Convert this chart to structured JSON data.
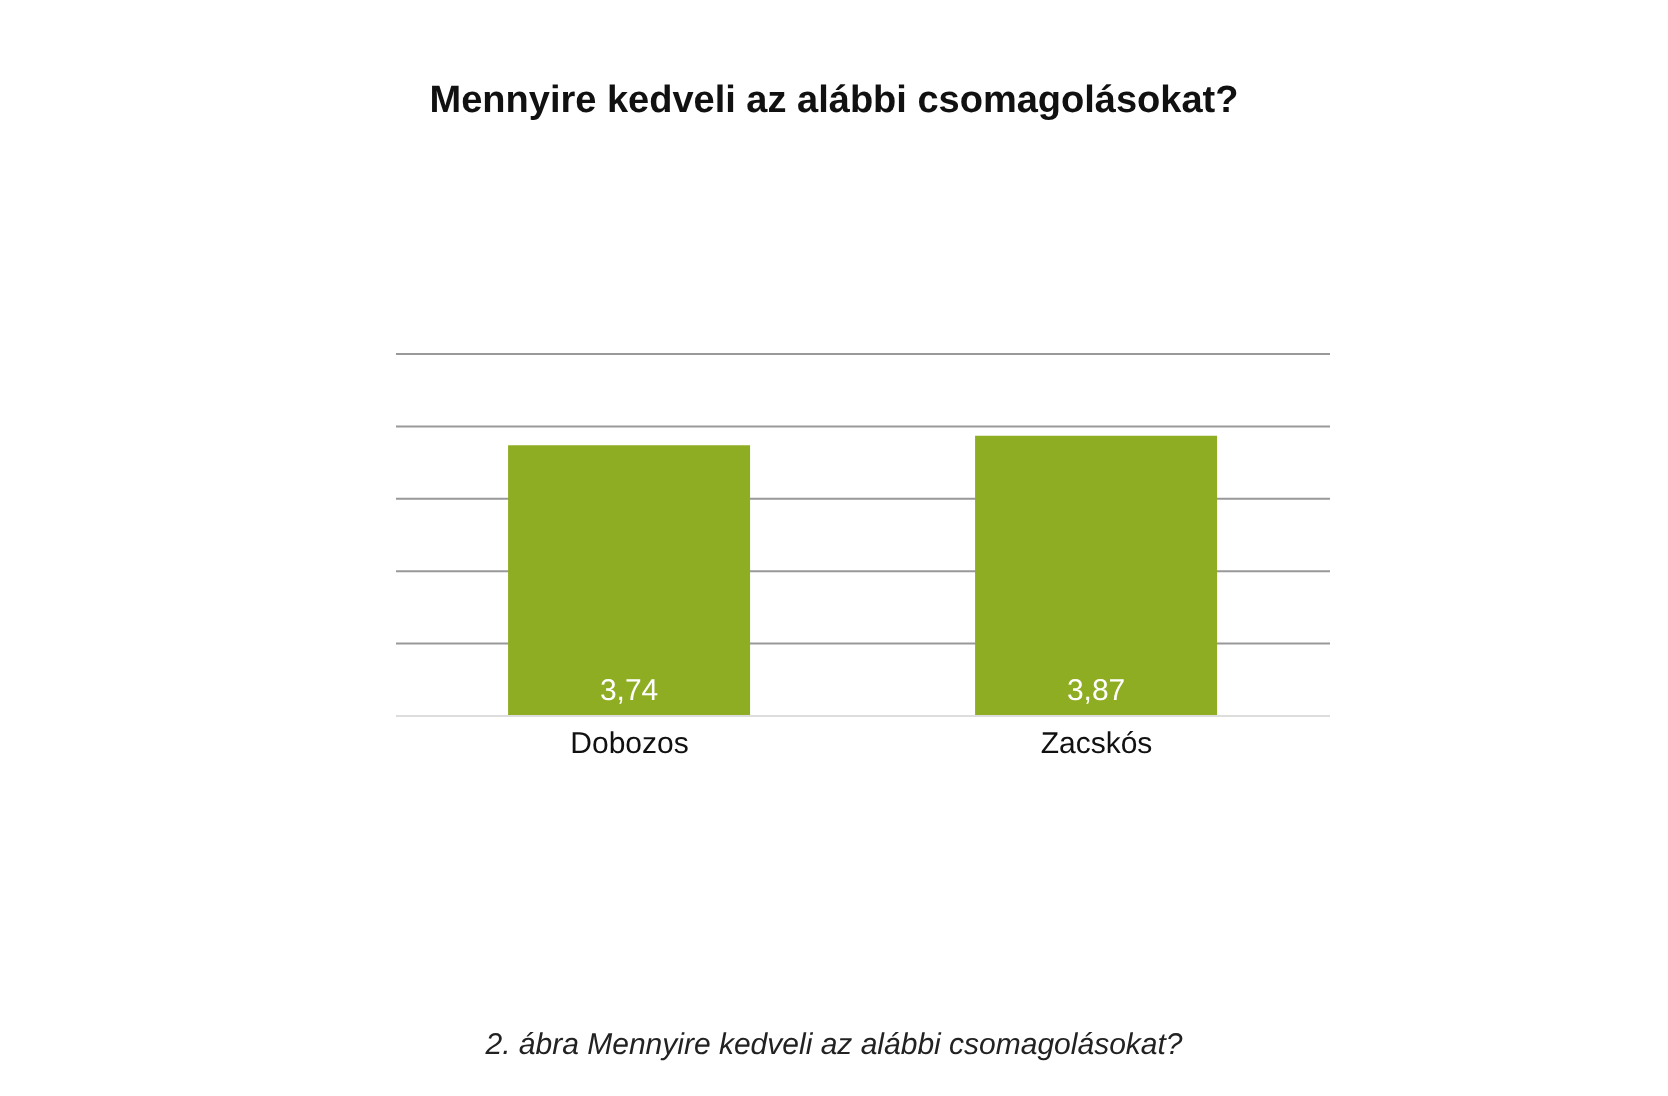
{
  "chart_data": {
    "type": "bar",
    "title": "Mennyire kedveli az alábbi csomagolásokat?",
    "categories": [
      "Dobozos",
      "Zacskós"
    ],
    "values": [
      3.74,
      3.87
    ],
    "value_labels": [
      "3,74",
      "3,87"
    ],
    "color": "#8fad22",
    "ylim": [
      0,
      5
    ],
    "grid": "y",
    "tick_labels": "x",
    "annotations": [
      "2. ábra Mennyire kedveli az alábbi csomagolásokat?"
    ]
  }
}
